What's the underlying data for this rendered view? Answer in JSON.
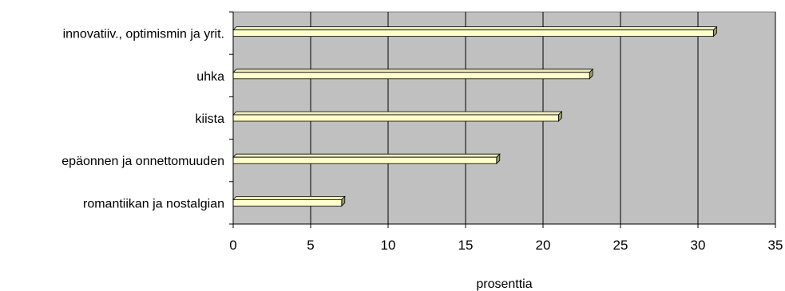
{
  "chart_data": {
    "type": "bar",
    "orientation": "horizontal",
    "categories": [
      "innovatiiv., optimismin ja yrit.",
      "uhka",
      "kiista",
      "epäonnen ja onnettomuuden",
      "romantiikan ja nostalgian"
    ],
    "values": [
      31,
      23,
      21,
      17,
      7
    ],
    "xlabel": "prosenttia",
    "ylabel": "",
    "title": "",
    "xlim": [
      0,
      35
    ],
    "xticks": [
      0,
      5,
      10,
      15,
      20,
      25,
      30,
      35
    ],
    "grid": true,
    "legend": "none",
    "colors": {
      "plot_background": "#c0c0c0",
      "bar_fill": "#ffffcc",
      "bar_side": "#999966",
      "grid": "#000000"
    }
  }
}
